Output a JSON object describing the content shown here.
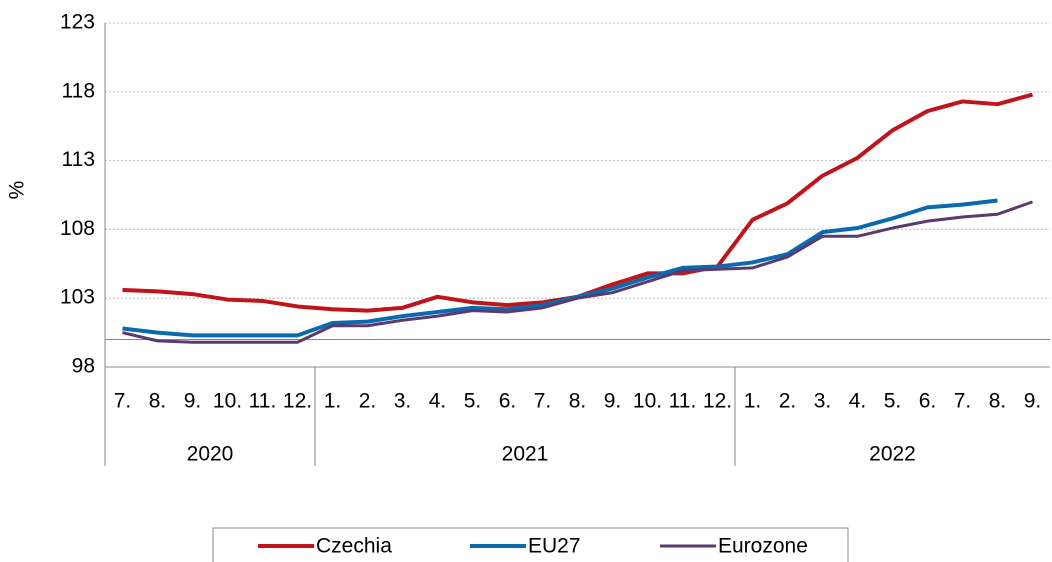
{
  "chart_data": {
    "type": "line",
    "ylabel": "%",
    "category_groups": [
      {
        "name": "2020",
        "categories": [
          "7.",
          "8.",
          "9.",
          "10.",
          "11.",
          "12."
        ]
      },
      {
        "name": "2021",
        "categories": [
          "1.",
          "2.",
          "3.",
          "4.",
          "5.",
          "6.",
          "7.",
          "8.",
          "9.",
          "10.",
          "11.",
          "12."
        ]
      },
      {
        "name": "2022",
        "categories": [
          "1.",
          "2.",
          "3.",
          "4.",
          "5.",
          "6.",
          "7.",
          "8.",
          "9."
        ]
      }
    ],
    "series": [
      {
        "name": "Czechia",
        "color": "#c0141c",
        "values": [
          103.6,
          103.5,
          103.3,
          102.9,
          102.8,
          102.4,
          102.2,
          102.1,
          102.3,
          103.1,
          102.7,
          102.5,
          102.7,
          103.1,
          104.0,
          104.8,
          104.8,
          105.3,
          108.7,
          109.9,
          111.9,
          113.2,
          115.2,
          116.6,
          117.3,
          117.1,
          117.8
        ]
      },
      {
        "name": "EU27",
        "color": "#0b6aae",
        "values": [
          100.8,
          100.5,
          100.3,
          100.3,
          100.3,
          100.3,
          101.2,
          101.3,
          101.7,
          102.0,
          102.3,
          102.2,
          102.5,
          103.1,
          103.7,
          104.5,
          105.2,
          105.3,
          105.6,
          106.2,
          107.8,
          108.1,
          108.8,
          109.6,
          109.8,
          110.1,
          null
        ]
      },
      {
        "name": "Eurozone",
        "color": "#5b3a6e",
        "values": [
          100.5,
          99.9,
          99.8,
          99.8,
          99.8,
          99.8,
          101.0,
          101.0,
          101.4,
          101.7,
          102.1,
          102.0,
          102.3,
          103.0,
          103.4,
          104.2,
          105.0,
          105.1,
          105.2,
          106.0,
          107.5,
          107.5,
          108.1,
          108.6,
          108.9,
          109.1,
          110.0
        ]
      }
    ],
    "ylim": [
      98,
      123
    ],
    "yticks": [
      98,
      103,
      108,
      113,
      118,
      123
    ],
    "grid": true,
    "hline": 100,
    "legend": "bottom"
  }
}
